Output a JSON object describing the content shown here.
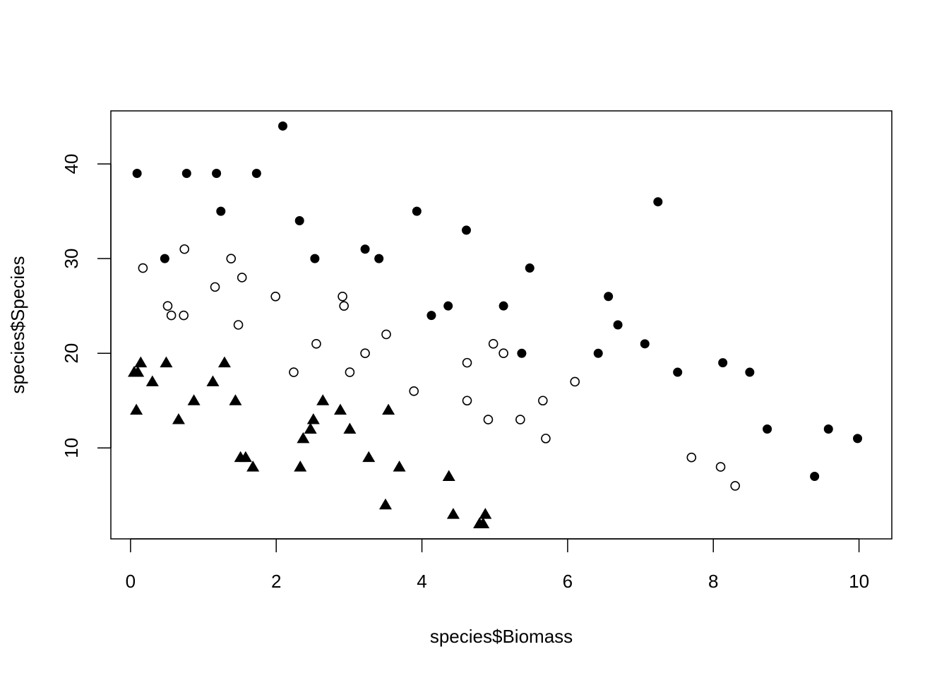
{
  "chart_data": {
    "type": "scatter",
    "xlabel": "species$Biomass",
    "ylabel": "species$Species",
    "xlim": [
      -0.27,
      10.45
    ],
    "ylim": [
      0.4,
      45.6
    ],
    "xticks": [
      0,
      2,
      4,
      6,
      8,
      10
    ],
    "yticks": [
      10,
      20,
      30,
      40
    ],
    "grid": false,
    "legend": "none",
    "series": [
      {
        "marker": "filled-circle",
        "color": "#000000",
        "points": [
          [
            0.09,
            39
          ],
          [
            0.77,
            39
          ],
          [
            1.18,
            39
          ],
          [
            1.73,
            39
          ],
          [
            2.09,
            44
          ],
          [
            1.24,
            35
          ],
          [
            2.32,
            34
          ],
          [
            0.47,
            30
          ],
          [
            2.53,
            30
          ],
          [
            3.22,
            31
          ],
          [
            3.41,
            30
          ],
          [
            3.93,
            35
          ],
          [
            4.13,
            24
          ],
          [
            4.36,
            25
          ],
          [
            4.61,
            33
          ],
          [
            5.12,
            25
          ],
          [
            5.37,
            20
          ],
          [
            5.48,
            29
          ],
          [
            6.42,
            20
          ],
          [
            6.56,
            26
          ],
          [
            6.69,
            23
          ],
          [
            7.06,
            21
          ],
          [
            7.24,
            36
          ],
          [
            7.51,
            18
          ],
          [
            8.13,
            19
          ],
          [
            8.5,
            18
          ],
          [
            8.74,
            12
          ],
          [
            9.39,
            7
          ],
          [
            9.58,
            12
          ],
          [
            9.98,
            11
          ]
        ]
      },
      {
        "marker": "open-circle",
        "color": "#000000",
        "points": [
          [
            0.17,
            29
          ],
          [
            0.51,
            25
          ],
          [
            0.56,
            24
          ],
          [
            0.73,
            24
          ],
          [
            0.74,
            31
          ],
          [
            1.16,
            27
          ],
          [
            1.38,
            30
          ],
          [
            1.48,
            23
          ],
          [
            1.53,
            28
          ],
          [
            1.99,
            26
          ],
          [
            2.24,
            18
          ],
          [
            2.55,
            21
          ],
          [
            2.91,
            26
          ],
          [
            2.93,
            25
          ],
          [
            3.01,
            18
          ],
          [
            3.22,
            20
          ],
          [
            3.51,
            22
          ],
          [
            3.89,
            16
          ],
          [
            4.62,
            19
          ],
          [
            4.62,
            15
          ],
          [
            4.91,
            13
          ],
          [
            4.98,
            21
          ],
          [
            5.12,
            20
          ],
          [
            5.35,
            13
          ],
          [
            5.66,
            15
          ],
          [
            5.7,
            11
          ],
          [
            6.1,
            17
          ],
          [
            7.7,
            9
          ],
          [
            8.1,
            8
          ],
          [
            8.3,
            6
          ]
        ]
      },
      {
        "marker": "filled-triangle",
        "color": "#000000",
        "points": [
          [
            0.05,
            18
          ],
          [
            0.1,
            18
          ],
          [
            0.14,
            19
          ],
          [
            0.08,
            14
          ],
          [
            0.3,
            17
          ],
          [
            0.49,
            19
          ],
          [
            0.66,
            13
          ],
          [
            0.87,
            15
          ],
          [
            1.13,
            17
          ],
          [
            1.29,
            19
          ],
          [
            1.44,
            15
          ],
          [
            1.51,
            9
          ],
          [
            1.58,
            9
          ],
          [
            1.68,
            8
          ],
          [
            2.33,
            8
          ],
          [
            2.37,
            11
          ],
          [
            2.47,
            12
          ],
          [
            2.51,
            13
          ],
          [
            2.64,
            15
          ],
          [
            2.88,
            14
          ],
          [
            3.01,
            12
          ],
          [
            3.27,
            9
          ],
          [
            3.5,
            4
          ],
          [
            3.54,
            14
          ],
          [
            3.69,
            8
          ],
          [
            4.37,
            7
          ],
          [
            4.43,
            3
          ],
          [
            4.79,
            2
          ],
          [
            4.84,
            2
          ],
          [
            4.87,
            3
          ]
        ]
      }
    ]
  }
}
